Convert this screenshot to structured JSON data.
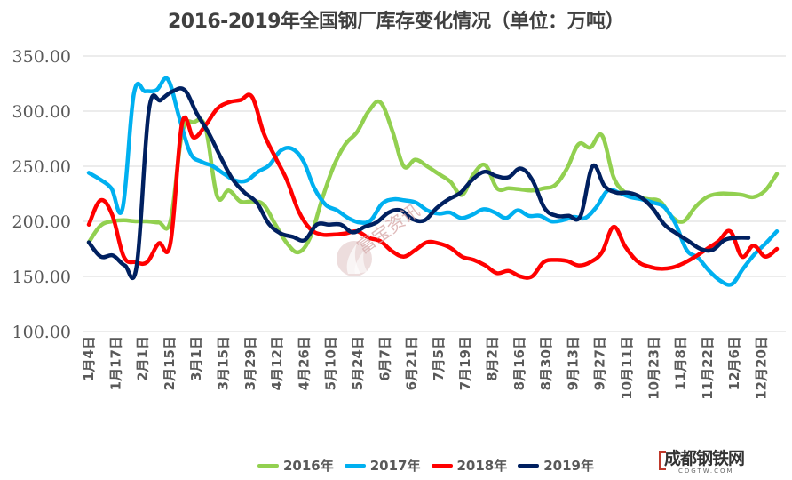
{
  "chart_data": {
    "type": "line",
    "title": "2016-2019年全国钢厂库存变化情况（单位：万吨）",
    "xlabel": "",
    "ylabel": "",
    "unit": "万吨",
    "ylim": [
      100,
      350
    ],
    "yticks": [
      "350.00",
      "300.00",
      "250.00",
      "200.00",
      "150.00",
      "100.00"
    ],
    "ytick_values": [
      350,
      300,
      250,
      200,
      150,
      100
    ],
    "grid": true,
    "legend_position": "bottom",
    "x_tick_labels": [
      "1月4日",
      "1月17日",
      "2月1日",
      "2月15日",
      "3月1日",
      "3月15日",
      "3月29日",
      "4月12日",
      "4月26日",
      "5月10日",
      "5月24日",
      "6月7日",
      "6月21日",
      "7月5日",
      "7月19日",
      "8月2日",
      "8月16日",
      "8月30日",
      "9月13日",
      "9月27日",
      "10月11日",
      "10月23日",
      "11月8日",
      "11月22日",
      "12月6日",
      "12月20日"
    ],
    "series": [
      {
        "name": "2016年",
        "color": "#92d050",
        "values": [
          181,
          196,
          200,
          201,
          200,
          200,
          199,
          200,
          280,
          290,
          285,
          223,
          228,
          218,
          218,
          215,
          197,
          180,
          172,
          186,
          220,
          250,
          270,
          281,
          300,
          308,
          283,
          250,
          256,
          250,
          243,
          236,
          224,
          243,
          251,
          230,
          230,
          229,
          228,
          230,
          233,
          248,
          270,
          267,
          278,
          240,
          226,
          222,
          220,
          218,
          204,
          200,
          213,
          222,
          225,
          225,
          224,
          222,
          228,
          243
        ]
      },
      {
        "name": "2017年",
        "color": "#00b0f0",
        "values": [
          244,
          238,
          230,
          212,
          316,
          318,
          319,
          329,
          295,
          262,
          254,
          250,
          243,
          237,
          237,
          245,
          251,
          264,
          266,
          255,
          230,
          215,
          210,
          203,
          199,
          201,
          216,
          220,
          219,
          217,
          210,
          207,
          208,
          203,
          206,
          211,
          208,
          203,
          210,
          205,
          205,
          200,
          201,
          204,
          203,
          213,
          228,
          226,
          222,
          220,
          217,
          213,
          198,
          174,
          167,
          155,
          146,
          143,
          157,
          170,
          180,
          191
        ]
      },
      {
        "name": "2018年",
        "color": "#ff0000",
        "values": [
          197,
          219,
          206,
          168,
          163,
          163,
          180,
          180,
          289,
          276,
          287,
          302,
          308,
          310,
          313,
          280,
          258,
          237,
          209,
          193,
          188,
          188,
          189,
          191,
          185,
          182,
          173,
          168,
          174,
          181,
          180,
          176,
          168,
          165,
          160,
          153,
          155,
          150,
          150,
          163,
          165,
          164,
          160,
          163,
          172,
          195,
          177,
          164,
          159,
          157,
          158,
          162,
          168,
          175,
          182,
          191,
          168,
          178,
          168,
          175
        ]
      },
      {
        "name": "2019年",
        "color": "#002060",
        "values": [
          181,
          168,
          169,
          160,
          160,
          300,
          310,
          318,
          319,
          298,
          280,
          258,
          238,
          226,
          217,
          198,
          189,
          186,
          183,
          197,
          197,
          197,
          190,
          195,
          199,
          208,
          210,
          202,
          201,
          212,
          220,
          226,
          238,
          245,
          241,
          240,
          248,
          237,
          212,
          205,
          205,
          205,
          250,
          232,
          226,
          226,
          222,
          212,
          197,
          189,
          182,
          175,
          174,
          183,
          185,
          185
        ]
      }
    ]
  },
  "legend": {
    "items": [
      {
        "label": "2016年",
        "color": "#92d050"
      },
      {
        "label": "2017年",
        "color": "#00b0f0"
      },
      {
        "label": "2018年",
        "color": "#ff0000"
      },
      {
        "label": "2019年",
        "color": "#002060"
      }
    ]
  },
  "watermark": {
    "text": "富宝资讯"
  },
  "logo": {
    "name": "成都钢铁网",
    "sub": "CDGTW.COM"
  }
}
